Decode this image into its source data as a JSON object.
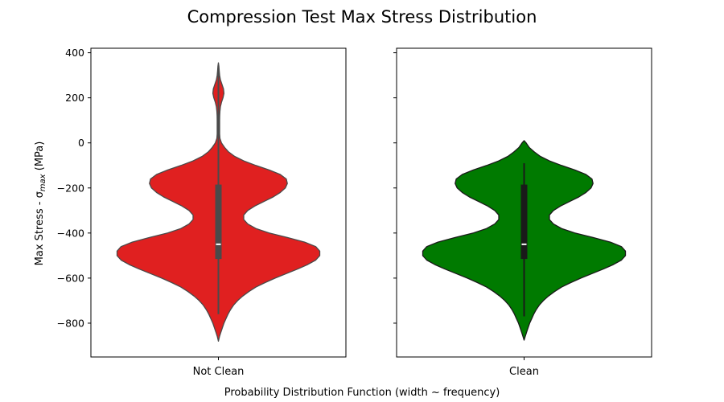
{
  "chart_data": {
    "type": "violin",
    "title": "Compression Test Max Stress Distribution",
    "xlabel": "Probability Distribution Function (width ~ frequency)",
    "ylabel": "Max Stress - σmax (MPa)",
    "ylabel_parts": {
      "prefix": "Max Stress - σ",
      "subscript": "max",
      "suffix": " (MPa)"
    },
    "ylim": [
      -950,
      420
    ],
    "yticks": [
      400,
      200,
      0,
      -200,
      -400,
      -600,
      -800
    ],
    "yticklabels": [
      "400",
      "200",
      "0",
      "−200",
      "−400",
      "−600",
      "−800"
    ],
    "grid": false,
    "panels": [
      {
        "category": "Not Clean",
        "color": "#e02020",
        "edge_color": "#4a4a4a",
        "median": -450,
        "q1": -515,
        "q3": -185,
        "whisker_low": -760,
        "whisker_high": 345,
        "range": [
          -880,
          355
        ],
        "density": [
          [
            -880,
            0.0
          ],
          [
            -860,
            0.01
          ],
          [
            -840,
            0.025
          ],
          [
            -820,
            0.04
          ],
          [
            -800,
            0.055
          ],
          [
            -780,
            0.075
          ],
          [
            -760,
            0.095
          ],
          [
            -740,
            0.12
          ],
          [
            -720,
            0.15
          ],
          [
            -700,
            0.19
          ],
          [
            -680,
            0.24
          ],
          [
            -660,
            0.3
          ],
          [
            -640,
            0.37
          ],
          [
            -620,
            0.46
          ],
          [
            -600,
            0.56
          ],
          [
            -580,
            0.67
          ],
          [
            -560,
            0.78
          ],
          [
            -540,
            0.88
          ],
          [
            -520,
            0.96
          ],
          [
            -500,
            1.0
          ],
          [
            -480,
            1.0
          ],
          [
            -460,
            0.96
          ],
          [
            -440,
            0.85
          ],
          [
            -420,
            0.68
          ],
          [
            -400,
            0.5
          ],
          [
            -380,
            0.37
          ],
          [
            -360,
            0.29
          ],
          [
            -340,
            0.25
          ],
          [
            -320,
            0.25
          ],
          [
            -300,
            0.29
          ],
          [
            -280,
            0.36
          ],
          [
            -260,
            0.45
          ],
          [
            -240,
            0.54
          ],
          [
            -220,
            0.61
          ],
          [
            -200,
            0.66
          ],
          [
            -180,
            0.68
          ],
          [
            -160,
            0.67
          ],
          [
            -140,
            0.61
          ],
          [
            -120,
            0.5
          ],
          [
            -100,
            0.37
          ],
          [
            -80,
            0.25
          ],
          [
            -60,
            0.16
          ],
          [
            -40,
            0.1
          ],
          [
            -20,
            0.06
          ],
          [
            0,
            0.03
          ],
          [
            20,
            0.015
          ],
          [
            40,
            0.012
          ],
          [
            60,
            0.012
          ],
          [
            80,
            0.012
          ],
          [
            100,
            0.012
          ],
          [
            120,
            0.013
          ],
          [
            140,
            0.015
          ],
          [
            160,
            0.02
          ],
          [
            180,
            0.03
          ],
          [
            200,
            0.045
          ],
          [
            220,
            0.055
          ],
          [
            240,
            0.05
          ],
          [
            260,
            0.035
          ],
          [
            280,
            0.02
          ],
          [
            300,
            0.012
          ],
          [
            320,
            0.008
          ],
          [
            340,
            0.005
          ],
          [
            355,
            0.0
          ]
        ]
      },
      {
        "category": "Clean",
        "color": "#007a00",
        "edge_color": "#1a1a1a",
        "median": -450,
        "q1": -515,
        "q3": -185,
        "whisker_low": -770,
        "whisker_high": -90,
        "range": [
          -875,
          10
        ],
        "density": [
          [
            -875,
            0.0
          ],
          [
            -860,
            0.01
          ],
          [
            -840,
            0.025
          ],
          [
            -820,
            0.04
          ],
          [
            -800,
            0.055
          ],
          [
            -780,
            0.075
          ],
          [
            -760,
            0.095
          ],
          [
            -740,
            0.12
          ],
          [
            -720,
            0.15
          ],
          [
            -700,
            0.19
          ],
          [
            -680,
            0.24
          ],
          [
            -660,
            0.3
          ],
          [
            -640,
            0.37
          ],
          [
            -620,
            0.46
          ],
          [
            -600,
            0.56
          ],
          [
            -580,
            0.67
          ],
          [
            -560,
            0.78
          ],
          [
            -540,
            0.88
          ],
          [
            -520,
            0.96
          ],
          [
            -500,
            1.0
          ],
          [
            -480,
            1.0
          ],
          [
            -460,
            0.96
          ],
          [
            -440,
            0.85
          ],
          [
            -420,
            0.68
          ],
          [
            -400,
            0.5
          ],
          [
            -380,
            0.37
          ],
          [
            -360,
            0.29
          ],
          [
            -340,
            0.25
          ],
          [
            -320,
            0.25
          ],
          [
            -300,
            0.29
          ],
          [
            -280,
            0.36
          ],
          [
            -260,
            0.45
          ],
          [
            -240,
            0.54
          ],
          [
            -220,
            0.61
          ],
          [
            -200,
            0.66
          ],
          [
            -180,
            0.68
          ],
          [
            -160,
            0.67
          ],
          [
            -140,
            0.61
          ],
          [
            -120,
            0.5
          ],
          [
            -100,
            0.37
          ],
          [
            -80,
            0.25
          ],
          [
            -60,
            0.16
          ],
          [
            -40,
            0.1
          ],
          [
            -20,
            0.05
          ],
          [
            0,
            0.02
          ],
          [
            10,
            0.0
          ]
        ]
      }
    ]
  }
}
